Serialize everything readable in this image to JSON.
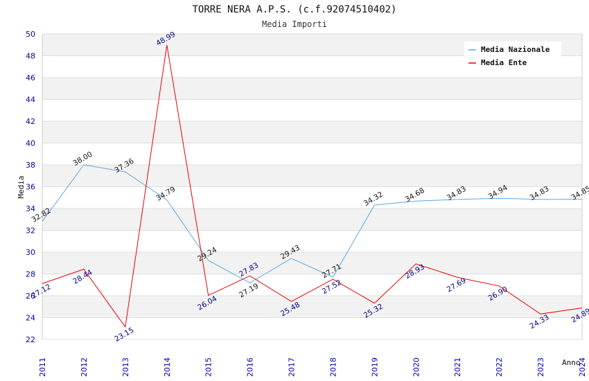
{
  "chart_data": {
    "type": "line",
    "title": "TORRE NERA A.P.S. (c.f.92074510402)",
    "subtitle": "Media Importi",
    "xlabel": "Anno",
    "ylabel": "Media",
    "ylim": [
      22,
      50
    ],
    "yticks": [
      "22",
      "24",
      "26",
      "28",
      "30",
      "32",
      "34",
      "36",
      "38",
      "40",
      "42",
      "44",
      "46",
      "48",
      "50"
    ],
    "categories": [
      "2011",
      "2012",
      "2013",
      "2014",
      "2015",
      "2016",
      "2017",
      "2018",
      "2019",
      "2020",
      "2021",
      "2022",
      "2023",
      "2024"
    ],
    "grid": "horizontal alternating bands",
    "legend_position": "top-right",
    "series": [
      {
        "name": "Media Nazionale",
        "color": "#5ca7e0",
        "label_color": "#111111",
        "values": [
          32.82,
          38.0,
          37.36,
          34.79,
          29.24,
          27.19,
          29.43,
          27.71,
          34.32,
          34.68,
          34.83,
          34.94,
          34.83,
          34.85
        ],
        "labels": [
          "32.82",
          "38.00",
          "37.36",
          "34.79",
          "29.24",
          "27.19",
          "29.43",
          "27.71",
          "34.32",
          "34.68",
          "34.83",
          "34.94",
          "34.83",
          "34.85"
        ]
      },
      {
        "name": "Media Ente",
        "color": "#e80000",
        "label_color": "#000080",
        "values": [
          27.12,
          28.44,
          23.15,
          48.99,
          26.04,
          27.83,
          25.48,
          27.52,
          25.32,
          28.93,
          27.69,
          26.9,
          24.33,
          24.89
        ],
        "labels": [
          "27.12",
          "28.44",
          "23.15",
          "48.99",
          "26.04",
          "27.83",
          "25.48",
          "27.52",
          "25.32",
          "28.93",
          "27.69",
          "26.90",
          "24.33",
          "24.89"
        ]
      }
    ]
  }
}
